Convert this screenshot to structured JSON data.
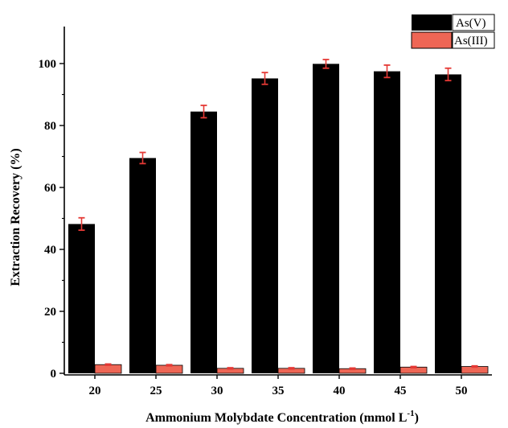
{
  "chart_data": {
    "type": "bar",
    "categories": [
      "20",
      "25",
      "30",
      "35",
      "40",
      "45",
      "50"
    ],
    "series": [
      {
        "name": "As(V)",
        "color": "#000000",
        "values": [
          48.2,
          69.5,
          84.5,
          95.2,
          99.9,
          97.5,
          96.5
        ],
        "errors": [
          2.0,
          1.8,
          2.0,
          1.9,
          1.4,
          2.0,
          2.0
        ]
      },
      {
        "name": "As(III)",
        "color": "#ee6655",
        "values": [
          2.8,
          2.6,
          1.6,
          1.6,
          1.5,
          2.0,
          2.2
        ],
        "errors": [
          0.2,
          0.2,
          0.2,
          0.2,
          0.2,
          0.2,
          0.2
        ]
      }
    ],
    "error_bar_color": "#e53935",
    "xlabel": "Ammonium Molybdate Concentration (mmol L",
    "xlabel_superscript": "-1",
    "xlabel_suffix": ")",
    "ylabel": "Extraction Recovery (%)",
    "ylim": [
      0,
      105
    ],
    "yticks": [
      0,
      20,
      40,
      60,
      80,
      100
    ],
    "legend_position": "top-right",
    "grid": false
  }
}
